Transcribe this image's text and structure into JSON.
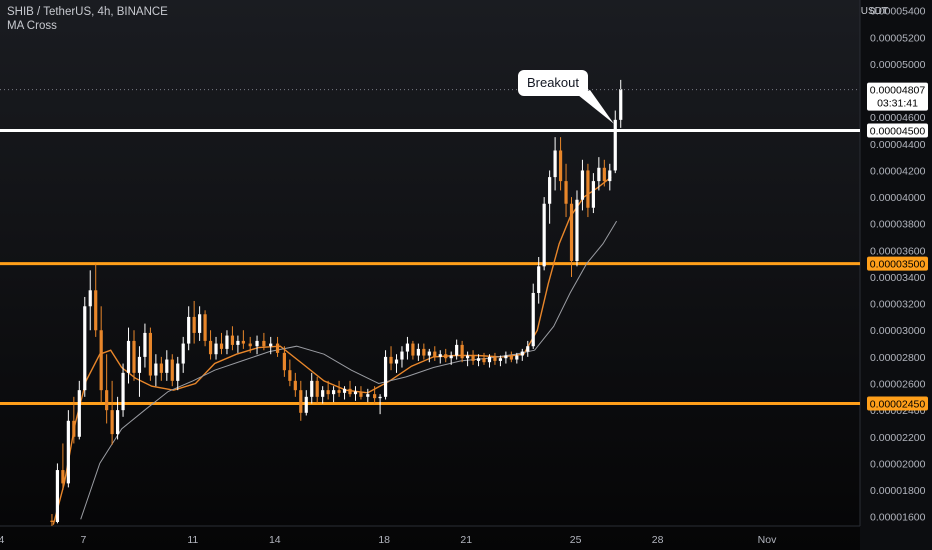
{
  "header": {
    "symbol_title": "SHIB / TetherUS, 4h, BINANCE",
    "indicator_label": "MA Cross",
    "currency": "USDT"
  },
  "annotation": {
    "text": "Breakout"
  },
  "colors": {
    "up": "#ffffff",
    "down": "#e8862a",
    "ma_fast": "#e8862a",
    "ma_slow": "#9a9ca2",
    "support_resistance": "#ff9f1a",
    "breakout_line": "#ffffff",
    "axis_text": "#b2b5be"
  },
  "chart_data": {
    "type": "candlestick",
    "title": "SHIB / TetherUS, 4h, BINANCE",
    "ylim": [
      1.53e-05,
      5.48e-05
    ],
    "y_ticks": [
      "0.00001600",
      "0.00001800",
      "0.00002000",
      "0.00002200",
      "0.00002400",
      "0.00002600",
      "0.00002800",
      "0.00003000",
      "0.00003200",
      "0.00003400",
      "0.00003600",
      "0.00003800",
      "0.00004000",
      "0.00004200",
      "0.00004400",
      "0.00004600",
      "0.00005000",
      "0.00005200",
      "0.00005400"
    ],
    "x_ticks": [
      {
        "label": "4",
        "day": 4
      },
      {
        "label": "7",
        "day": 7
      },
      {
        "label": "11",
        "day": 11
      },
      {
        "label": "14",
        "day": 14
      },
      {
        "label": "18",
        "day": 18
      },
      {
        "label": "21",
        "day": 21
      },
      {
        "label": "25",
        "day": 25
      },
      {
        "label": "28",
        "day": 28
      },
      {
        "label": "Nov",
        "day": 32
      }
    ],
    "xlim_days": [
      3.95,
      35.4
    ],
    "horizontal_levels": [
      {
        "value": 4.5e-05,
        "label": "0.00004500",
        "color": "#ffffff"
      },
      {
        "value": 3.5e-05,
        "label": "0.00003500",
        "color": "#ff9f1a"
      },
      {
        "value": 2.45e-05,
        "label": "0.00002450",
        "color": "#ff9f1a"
      }
    ],
    "last_price": {
      "value": 4.807e-05,
      "label": "0.00004807",
      "countdown": "03:31:41"
    },
    "annotations": [
      {
        "text": "Breakout",
        "day": 26.4,
        "value": 4.55e-05
      }
    ],
    "legend": "none",
    "grid": false,
    "series": [
      {
        "name": "MA Cross",
        "kind": "ma",
        "period": "fast",
        "points": [
          [
            5.9,
            1.54e-05
          ],
          [
            6.3,
            1.85e-05
          ],
          [
            6.7,
            2.3e-05
          ],
          [
            7.1,
            2.62e-05
          ],
          [
            7.6,
            2.82e-05
          ],
          [
            8.0,
            2.85e-05
          ],
          [
            8.4,
            2.72e-05
          ],
          [
            8.9,
            2.64e-05
          ],
          [
            9.5,
            2.58e-05
          ],
          [
            10.3,
            2.55e-05
          ],
          [
            11.1,
            2.6e-05
          ],
          [
            11.8,
            2.75e-05
          ],
          [
            12.6,
            2.82e-05
          ],
          [
            13.4,
            2.87e-05
          ],
          [
            14.2,
            2.88e-05
          ],
          [
            15.0,
            2.75e-05
          ],
          [
            15.8,
            2.62e-05
          ],
          [
            16.6,
            2.55e-05
          ],
          [
            17.4,
            2.53e-05
          ],
          [
            18.2,
            2.62e-05
          ],
          [
            19.0,
            2.73e-05
          ],
          [
            19.8,
            2.8e-05
          ],
          [
            20.6,
            2.81e-05
          ],
          [
            21.4,
            2.81e-05
          ],
          [
            22.3,
            2.8e-05
          ],
          [
            23.1,
            2.82e-05
          ],
          [
            23.6,
            3e-05
          ],
          [
            24.0,
            3.35e-05
          ],
          [
            24.4,
            3.65e-05
          ],
          [
            24.8,
            3.85e-05
          ],
          [
            25.3,
            4e-05
          ],
          [
            25.8,
            4.07e-05
          ],
          [
            26.3,
            4.15e-05
          ]
        ]
      },
      {
        "name": "MA Cross",
        "kind": "ma",
        "period": "slow",
        "points": [
          [
            6.9,
            1.58e-05
          ],
          [
            7.6,
            2e-05
          ],
          [
            8.4,
            2.26e-05
          ],
          [
            9.3,
            2.41e-05
          ],
          [
            10.1,
            2.54e-05
          ],
          [
            11.0,
            2.62e-05
          ],
          [
            11.8,
            2.7e-05
          ],
          [
            12.8,
            2.77e-05
          ],
          [
            13.8,
            2.84e-05
          ],
          [
            14.8,
            2.88e-05
          ],
          [
            15.8,
            2.82e-05
          ],
          [
            16.8,
            2.7e-05
          ],
          [
            17.8,
            2.6e-05
          ],
          [
            18.8,
            2.65e-05
          ],
          [
            19.8,
            2.72e-05
          ],
          [
            20.8,
            2.77e-05
          ],
          [
            21.8,
            2.79e-05
          ],
          [
            22.8,
            2.82e-05
          ],
          [
            23.5,
            2.85e-05
          ],
          [
            24.2,
            3.03e-05
          ],
          [
            24.8,
            3.28e-05
          ],
          [
            25.4,
            3.5e-05
          ],
          [
            26.0,
            3.65e-05
          ],
          [
            26.5,
            3.82e-05
          ]
        ]
      }
    ],
    "candles": [
      {
        "d": 5.85,
        "o": 1.57e-05,
        "h": 1.62e-05,
        "l": 1.53e-05,
        "c": 1.56e-05
      },
      {
        "d": 6.05,
        "o": 1.56e-05,
        "h": 2e-05,
        "l": 1.55e-05,
        "c": 1.95e-05
      },
      {
        "d": 6.25,
        "o": 1.95e-05,
        "h": 2.15e-05,
        "l": 1.8e-05,
        "c": 1.85e-05
      },
      {
        "d": 6.45,
        "o": 1.85e-05,
        "h": 2.4e-05,
        "l": 1.82e-05,
        "c": 2.32e-05
      },
      {
        "d": 6.65,
        "o": 2.32e-05,
        "h": 2.5e-05,
        "l": 2.15e-05,
        "c": 2.2e-05
      },
      {
        "d": 6.85,
        "o": 2.2e-05,
        "h": 2.62e-05,
        "l": 2.18e-05,
        "c": 2.55e-05
      },
      {
        "d": 7.05,
        "o": 2.55e-05,
        "h": 3.25e-05,
        "l": 2.5e-05,
        "c": 3.18e-05
      },
      {
        "d": 7.25,
        "o": 3.18e-05,
        "h": 3.45e-05,
        "l": 3e-05,
        "c": 3.3e-05
      },
      {
        "d": 7.45,
        "o": 3.3e-05,
        "h": 3.5e-05,
        "l": 2.95e-05,
        "c": 3e-05
      },
      {
        "d": 7.65,
        "o": 3e-05,
        "h": 3.18e-05,
        "l": 2.45e-05,
        "c": 2.55e-05
      },
      {
        "d": 7.85,
        "o": 2.55e-05,
        "h": 2.82e-05,
        "l": 2.3e-05,
        "c": 2.4e-05
      },
      {
        "d": 8.05,
        "o": 2.4e-05,
        "h": 2.62e-05,
        "l": 2.14e-05,
        "c": 2.22e-05
      },
      {
        "d": 8.25,
        "o": 2.22e-05,
        "h": 2.5e-05,
        "l": 2.18e-05,
        "c": 2.4e-05
      },
      {
        "d": 8.45,
        "o": 2.4e-05,
        "h": 2.75e-05,
        "l": 2.35e-05,
        "c": 2.68e-05
      },
      {
        "d": 8.65,
        "o": 2.68e-05,
        "h": 3.02e-05,
        "l": 2.6e-05,
        "c": 2.92e-05
      },
      {
        "d": 8.85,
        "o": 2.92e-05,
        "h": 3e-05,
        "l": 2.62e-05,
        "c": 2.68e-05
      },
      {
        "d": 9.05,
        "o": 2.68e-05,
        "h": 2.88e-05,
        "l": 2.5e-05,
        "c": 2.8e-05
      },
      {
        "d": 9.25,
        "o": 2.8e-05,
        "h": 3.05e-05,
        "l": 2.72e-05,
        "c": 2.98e-05
      },
      {
        "d": 9.45,
        "o": 2.98e-05,
        "h": 3.02e-05,
        "l": 2.62e-05,
        "c": 2.66e-05
      },
      {
        "d": 9.65,
        "o": 2.66e-05,
        "h": 2.82e-05,
        "l": 2.58e-05,
        "c": 2.75e-05
      },
      {
        "d": 9.85,
        "o": 2.75e-05,
        "h": 2.8e-05,
        "l": 2.62e-05,
        "c": 2.68e-05
      },
      {
        "d": 10.05,
        "o": 2.68e-05,
        "h": 2.85e-05,
        "l": 2.62e-05,
        "c": 2.78e-05
      },
      {
        "d": 10.25,
        "o": 2.78e-05,
        "h": 2.82e-05,
        "l": 2.58e-05,
        "c": 2.62e-05
      },
      {
        "d": 10.45,
        "o": 2.62e-05,
        "h": 2.8e-05,
        "l": 2.55e-05,
        "c": 2.75e-05
      },
      {
        "d": 10.65,
        "o": 2.75e-05,
        "h": 2.95e-05,
        "l": 2.68e-05,
        "c": 2.9e-05
      },
      {
        "d": 10.85,
        "o": 2.9e-05,
        "h": 3.18e-05,
        "l": 2.85e-05,
        "c": 3.1e-05
      },
      {
        "d": 11.05,
        "o": 3.1e-05,
        "h": 3.22e-05,
        "l": 2.9e-05,
        "c": 2.98e-05
      },
      {
        "d": 11.25,
        "o": 2.98e-05,
        "h": 3.18e-05,
        "l": 2.92e-05,
        "c": 3.12e-05
      },
      {
        "d": 11.45,
        "o": 3.12e-05,
        "h": 3.15e-05,
        "l": 2.88e-05,
        "c": 2.92e-05
      },
      {
        "d": 11.65,
        "o": 2.92e-05,
        "h": 3e-05,
        "l": 2.78e-05,
        "c": 2.82e-05
      },
      {
        "d": 11.85,
        "o": 2.82e-05,
        "h": 2.95e-05,
        "l": 2.78e-05,
        "c": 2.9e-05
      },
      {
        "d": 12.05,
        "o": 2.9e-05,
        "h": 2.98e-05,
        "l": 2.82e-05,
        "c": 2.86e-05
      },
      {
        "d": 12.25,
        "o": 2.86e-05,
        "h": 3e-05,
        "l": 2.82e-05,
        "c": 2.96e-05
      },
      {
        "d": 12.45,
        "o": 2.96e-05,
        "h": 3.03e-05,
        "l": 2.85e-05,
        "c": 2.89e-05
      },
      {
        "d": 12.65,
        "o": 2.89e-05,
        "h": 2.96e-05,
        "l": 2.83e-05,
        "c": 2.92e-05
      },
      {
        "d": 12.85,
        "o": 2.92e-05,
        "h": 3e-05,
        "l": 2.86e-05,
        "c": 2.9e-05
      },
      {
        "d": 13.1,
        "o": 2.9e-05,
        "h": 2.95e-05,
        "l": 2.83e-05,
        "c": 2.88e-05
      },
      {
        "d": 13.35,
        "o": 2.88e-05,
        "h": 2.96e-05,
        "l": 2.82e-05,
        "c": 2.92e-05
      },
      {
        "d": 13.6,
        "o": 2.92e-05,
        "h": 2.98e-05,
        "l": 2.85e-05,
        "c": 2.88e-05
      },
      {
        "d": 13.85,
        "o": 2.88e-05,
        "h": 2.95e-05,
        "l": 2.82e-05,
        "c": 2.9e-05
      },
      {
        "d": 14.1,
        "o": 2.9e-05,
        "h": 2.95e-05,
        "l": 2.8e-05,
        "c": 2.83e-05
      },
      {
        "d": 14.35,
        "o": 2.83e-05,
        "h": 2.88e-05,
        "l": 2.65e-05,
        "c": 2.7e-05
      },
      {
        "d": 14.55,
        "o": 2.7e-05,
        "h": 2.78e-05,
        "l": 2.58e-05,
        "c": 2.62e-05
      },
      {
        "d": 14.75,
        "o": 2.62e-05,
        "h": 2.68e-05,
        "l": 2.5e-05,
        "c": 2.55e-05
      },
      {
        "d": 14.95,
        "o": 2.55e-05,
        "h": 2.62e-05,
        "l": 2.32e-05,
        "c": 2.38e-05
      },
      {
        "d": 15.15,
        "o": 2.38e-05,
        "h": 2.55e-05,
        "l": 2.36e-05,
        "c": 2.5e-05
      },
      {
        "d": 15.35,
        "o": 2.5e-05,
        "h": 2.68e-05,
        "l": 2.45e-05,
        "c": 2.62e-05
      },
      {
        "d": 15.55,
        "o": 2.62e-05,
        "h": 2.65e-05,
        "l": 2.45e-05,
        "c": 2.5e-05
      },
      {
        "d": 15.75,
        "o": 2.5e-05,
        "h": 2.58e-05,
        "l": 2.45e-05,
        "c": 2.55e-05
      },
      {
        "d": 15.95,
        "o": 2.55e-05,
        "h": 2.62e-05,
        "l": 2.48e-05,
        "c": 2.52e-05
      },
      {
        "d": 16.15,
        "o": 2.52e-05,
        "h": 2.58e-05,
        "l": 2.46e-05,
        "c": 2.55e-05
      },
      {
        "d": 16.35,
        "o": 2.55e-05,
        "h": 2.62e-05,
        "l": 2.5e-05,
        "c": 2.53e-05
      },
      {
        "d": 16.55,
        "o": 2.53e-05,
        "h": 2.58e-05,
        "l": 2.48e-05,
        "c": 2.56e-05
      },
      {
        "d": 16.75,
        "o": 2.56e-05,
        "h": 2.62e-05,
        "l": 2.5e-05,
        "c": 2.52e-05
      },
      {
        "d": 16.95,
        "o": 2.52e-05,
        "h": 2.58e-05,
        "l": 2.47e-05,
        "c": 2.54e-05
      },
      {
        "d": 17.15,
        "o": 2.54e-05,
        "h": 2.58e-05,
        "l": 2.48e-05,
        "c": 2.5e-05
      },
      {
        "d": 17.4,
        "o": 2.5e-05,
        "h": 2.56e-05,
        "l": 2.46e-05,
        "c": 2.52e-05
      },
      {
        "d": 17.65,
        "o": 2.52e-05,
        "h": 2.58e-05,
        "l": 2.45e-05,
        "c": 2.49e-05
      },
      {
        "d": 17.85,
        "o": 2.49e-05,
        "h": 2.52e-05,
        "l": 2.37e-05,
        "c": 2.5e-05
      },
      {
        "d": 18.05,
        "o": 2.5e-05,
        "h": 2.85e-05,
        "l": 2.48e-05,
        "c": 2.8e-05
      },
      {
        "d": 18.25,
        "o": 2.8e-05,
        "h": 2.88e-05,
        "l": 2.7e-05,
        "c": 2.75e-05
      },
      {
        "d": 18.45,
        "o": 2.75e-05,
        "h": 2.82e-05,
        "l": 2.68e-05,
        "c": 2.78e-05
      },
      {
        "d": 18.65,
        "o": 2.78e-05,
        "h": 2.88e-05,
        "l": 2.72e-05,
        "c": 2.84e-05
      },
      {
        "d": 18.85,
        "o": 2.84e-05,
        "h": 2.95e-05,
        "l": 2.78e-05,
        "c": 2.9e-05
      },
      {
        "d": 19.05,
        "o": 2.9e-05,
        "h": 2.92e-05,
        "l": 2.78e-05,
        "c": 2.81e-05
      },
      {
        "d": 19.25,
        "o": 2.81e-05,
        "h": 2.9e-05,
        "l": 2.77e-05,
        "c": 2.86e-05
      },
      {
        "d": 19.45,
        "o": 2.86e-05,
        "h": 2.9e-05,
        "l": 2.78e-05,
        "c": 2.81e-05
      },
      {
        "d": 19.65,
        "o": 2.81e-05,
        "h": 2.86e-05,
        "l": 2.76e-05,
        "c": 2.84e-05
      },
      {
        "d": 19.85,
        "o": 2.84e-05,
        "h": 2.88e-05,
        "l": 2.77e-05,
        "c": 2.8e-05
      },
      {
        "d": 20.05,
        "o": 2.8e-05,
        "h": 2.85e-05,
        "l": 2.75e-05,
        "c": 2.82e-05
      },
      {
        "d": 20.25,
        "o": 2.82e-05,
        "h": 2.86e-05,
        "l": 2.76e-05,
        "c": 2.79e-05
      },
      {
        "d": 20.45,
        "o": 2.79e-05,
        "h": 2.84e-05,
        "l": 2.74e-05,
        "c": 2.81e-05
      },
      {
        "d": 20.65,
        "o": 2.81e-05,
        "h": 2.93e-05,
        "l": 2.78e-05,
        "c": 2.89e-05
      },
      {
        "d": 20.85,
        "o": 2.89e-05,
        "h": 2.92e-05,
        "l": 2.76e-05,
        "c": 2.79e-05
      },
      {
        "d": 21.05,
        "o": 2.79e-05,
        "h": 2.84e-05,
        "l": 2.73e-05,
        "c": 2.81e-05
      },
      {
        "d": 21.25,
        "o": 2.81e-05,
        "h": 2.85e-05,
        "l": 2.74e-05,
        "c": 2.77e-05
      },
      {
        "d": 21.45,
        "o": 2.77e-05,
        "h": 2.82e-05,
        "l": 2.73e-05,
        "c": 2.79e-05
      },
      {
        "d": 21.65,
        "o": 2.79e-05,
        "h": 2.83e-05,
        "l": 2.74e-05,
        "c": 2.76e-05
      },
      {
        "d": 21.85,
        "o": 2.76e-05,
        "h": 2.82e-05,
        "l": 2.72e-05,
        "c": 2.8e-05
      },
      {
        "d": 22.05,
        "o": 2.8e-05,
        "h": 2.83e-05,
        "l": 2.74e-05,
        "c": 2.77e-05
      },
      {
        "d": 22.25,
        "o": 2.77e-05,
        "h": 2.81e-05,
        "l": 2.73e-05,
        "c": 2.79e-05
      },
      {
        "d": 22.45,
        "o": 2.79e-05,
        "h": 2.84e-05,
        "l": 2.75e-05,
        "c": 2.81e-05
      },
      {
        "d": 22.65,
        "o": 2.81e-05,
        "h": 2.84e-05,
        "l": 2.76e-05,
        "c": 2.78e-05
      },
      {
        "d": 22.85,
        "o": 2.78e-05,
        "h": 2.83e-05,
        "l": 2.75e-05,
        "c": 2.81e-05
      },
      {
        "d": 23.05,
        "o": 2.81e-05,
        "h": 2.86e-05,
        "l": 2.77e-05,
        "c": 2.84e-05
      },
      {
        "d": 23.25,
        "o": 2.84e-05,
        "h": 2.92e-05,
        "l": 2.8e-05,
        "c": 2.88e-05
      },
      {
        "d": 23.45,
        "o": 2.88e-05,
        "h": 3.35e-05,
        "l": 2.86e-05,
        "c": 3.28e-05
      },
      {
        "d": 23.65,
        "o": 3.28e-05,
        "h": 3.55e-05,
        "l": 3.2e-05,
        "c": 3.48e-05
      },
      {
        "d": 23.85,
        "o": 3.48e-05,
        "h": 4e-05,
        "l": 3.45e-05,
        "c": 3.95e-05
      },
      {
        "d": 24.05,
        "o": 3.95e-05,
        "h": 4.2e-05,
        "l": 3.8e-05,
        "c": 4.15e-05
      },
      {
        "d": 24.25,
        "o": 4.15e-05,
        "h": 4.45e-05,
        "l": 4.05e-05,
        "c": 4.35e-05
      },
      {
        "d": 24.45,
        "o": 4.35e-05,
        "h": 4.45e-05,
        "l": 4.05e-05,
        "c": 4.12e-05
      },
      {
        "d": 24.65,
        "o": 4.12e-05,
        "h": 4.25e-05,
        "l": 3.85e-05,
        "c": 3.95e-05
      },
      {
        "d": 24.85,
        "o": 3.95e-05,
        "h": 4e-05,
        "l": 3.4e-05,
        "c": 3.52e-05
      },
      {
        "d": 25.05,
        "o": 3.52e-05,
        "h": 4.05e-05,
        "l": 3.48e-05,
        "c": 3.98e-05
      },
      {
        "d": 25.25,
        "o": 3.98e-05,
        "h": 4.28e-05,
        "l": 3.9e-05,
        "c": 4.2e-05
      },
      {
        "d": 25.45,
        "o": 4.2e-05,
        "h": 4.25e-05,
        "l": 3.85e-05,
        "c": 3.92e-05
      },
      {
        "d": 25.65,
        "o": 3.92e-05,
        "h": 4.18e-05,
        "l": 3.88e-05,
        "c": 4.12e-05
      },
      {
        "d": 25.85,
        "o": 4.12e-05,
        "h": 4.3e-05,
        "l": 4.05e-05,
        "c": 4.22e-05
      },
      {
        "d": 26.05,
        "o": 4.22e-05,
        "h": 4.28e-05,
        "l": 4.08e-05,
        "c": 4.12e-05
      },
      {
        "d": 26.25,
        "o": 4.12e-05,
        "h": 4.25e-05,
        "l": 4.05e-05,
        "c": 4.2e-05
      },
      {
        "d": 26.45,
        "o": 4.2e-05,
        "h": 4.65e-05,
        "l": 4.18e-05,
        "c": 4.58e-05
      },
      {
        "d": 26.65,
        "o": 4.58e-05,
        "h": 4.88e-05,
        "l": 4.52e-05,
        "c": 4.81e-05
      }
    ]
  }
}
